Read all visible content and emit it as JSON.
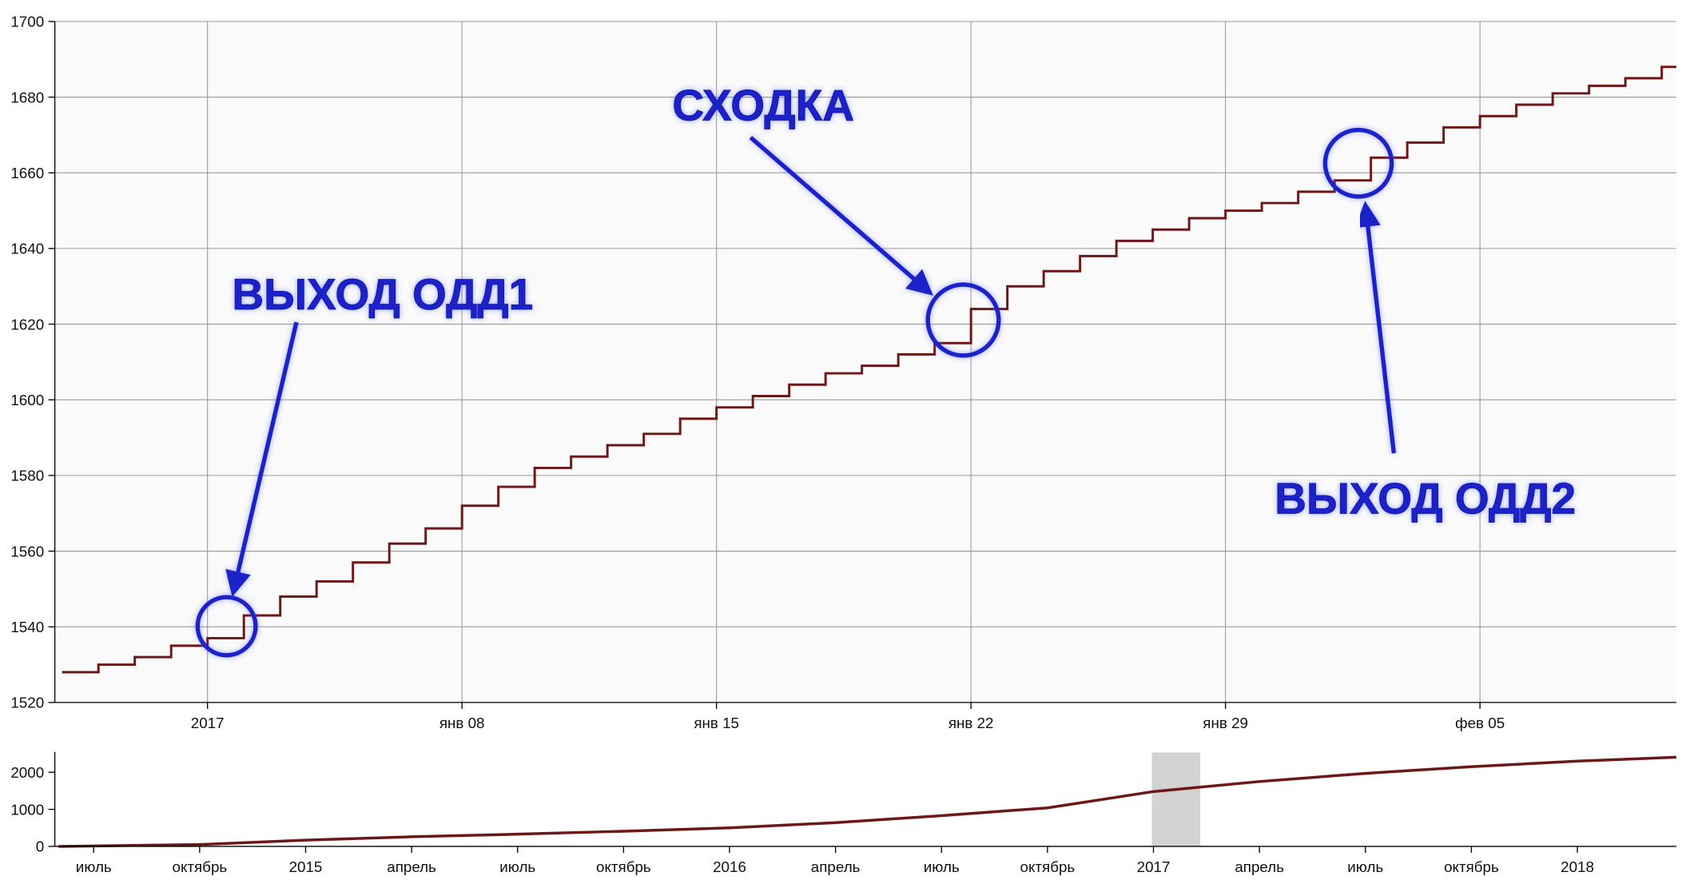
{
  "chart_data": [
    {
      "type": "line",
      "step": true,
      "color": "#6e1717",
      "grid": true,
      "x": [
        -4,
        -3,
        -2,
        -1,
        0,
        1,
        2,
        3,
        4,
        5,
        6,
        7,
        8,
        9,
        10,
        11,
        12,
        13,
        14,
        15,
        16,
        17,
        18,
        19,
        20,
        21,
        22,
        23,
        24,
        25,
        26,
        27,
        28,
        29,
        30,
        31,
        32,
        33,
        34,
        35,
        36,
        37,
        38,
        39,
        40
      ],
      "values": [
        1528,
        1530,
        1532,
        1535,
        1537,
        1543,
        1548,
        1552,
        1557,
        1562,
        1566,
        1572,
        1577,
        1582,
        1585,
        1588,
        1591,
        1595,
        1598,
        1601,
        1604,
        1607,
        1609,
        1612,
        1615,
        1624,
        1630,
        1634,
        1638,
        1642,
        1645,
        1648,
        1650,
        1652,
        1655,
        1658,
        1664,
        1668,
        1672,
        1675,
        1678,
        1681,
        1683,
        1685,
        1688
      ],
      "xlim": [
        -4.2,
        40.4
      ],
      "ylim": [
        1520,
        1700
      ],
      "xticks": [
        {
          "value": 0,
          "label": "2017"
        },
        {
          "value": 7,
          "label": "янв 08"
        },
        {
          "value": 14,
          "label": "янв 15"
        },
        {
          "value": 21,
          "label": "янв 22"
        },
        {
          "value": 28,
          "label": "янв 29"
        },
        {
          "value": 35,
          "label": "фев 05"
        }
      ],
      "yticks": [
        1520,
        1540,
        1560,
        1580,
        1600,
        1620,
        1640,
        1660,
        1680,
        1700
      ]
    },
    {
      "type": "line",
      "step": false,
      "color": "#6e1717",
      "grid": false,
      "x": [
        -31,
        -27,
        -24,
        -21,
        -18,
        -15,
        -12,
        -9,
        -6,
        -3,
        0,
        3,
        6,
        9,
        12,
        14.8
      ],
      "values": [
        0,
        50,
        170,
        260,
        330,
        410,
        500,
        640,
        830,
        1040,
        1480,
        1750,
        1970,
        2150,
        2300,
        2405
      ],
      "xlim": [
        -31.1,
        14.8
      ],
      "ylim": [
        0,
        2550
      ],
      "selection": [
        -0.06,
        1.34
      ],
      "xticks": [
        {
          "value": -30,
          "label": "июль"
        },
        {
          "value": -27,
          "label": "октябрь"
        },
        {
          "value": -24,
          "label": "2015"
        },
        {
          "value": -21,
          "label": "апрель"
        },
        {
          "value": -18,
          "label": "июль"
        },
        {
          "value": -15,
          "label": "октябрь"
        },
        {
          "value": -12,
          "label": "2016"
        },
        {
          "value": -9,
          "label": "апрель"
        },
        {
          "value": -6,
          "label": "июль"
        },
        {
          "value": -3,
          "label": "октябрь"
        },
        {
          "value": 0,
          "label": "2017"
        },
        {
          "value": 3,
          "label": "апрель"
        },
        {
          "value": 6,
          "label": "июль"
        },
        {
          "value": 9,
          "label": "октябрь"
        },
        {
          "value": 12,
          "label": "2018"
        }
      ],
      "yticks": [
        0,
        1000,
        2000
      ]
    }
  ],
  "annotations": [
    "ВЫХОД ОДД1",
    "СХОДКА",
    "ВЫХОД ОДД2"
  ]
}
